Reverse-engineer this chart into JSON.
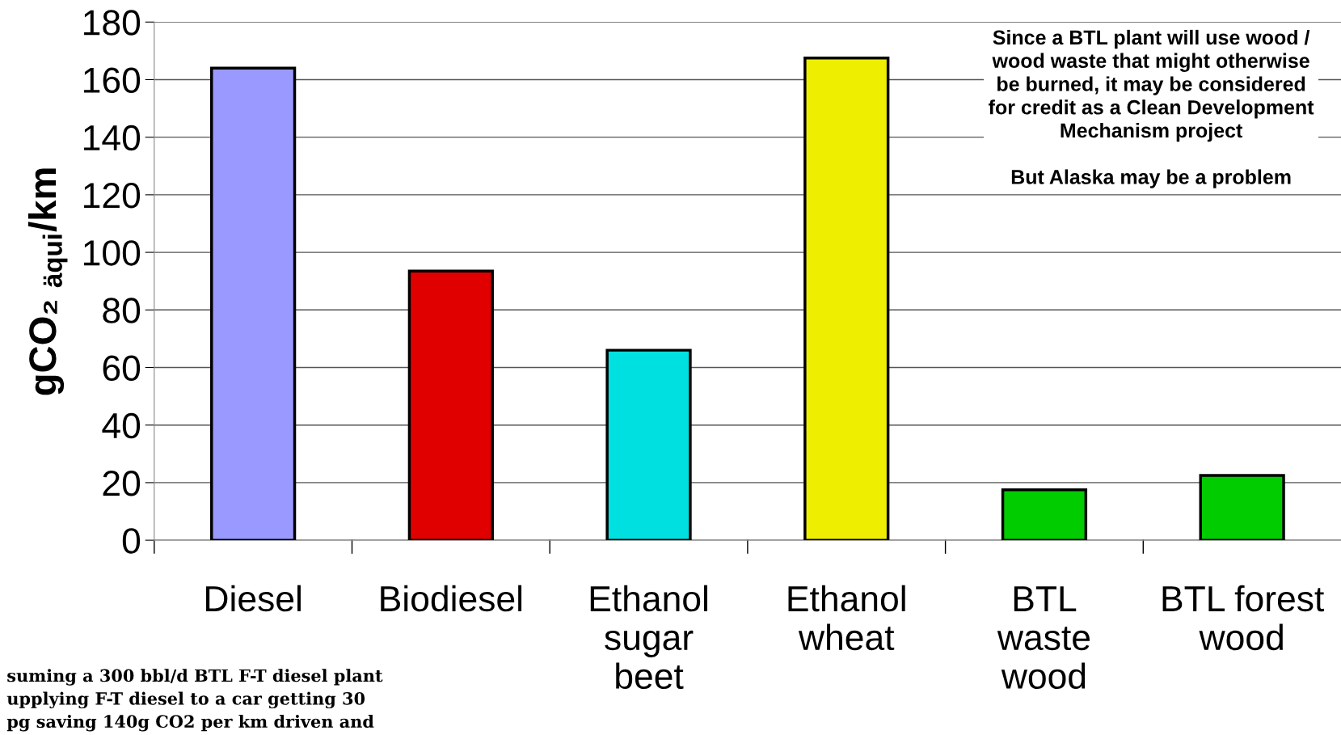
{
  "chart_data": {
    "type": "bar",
    "categories": [
      "Diesel",
      "Biodiesel",
      "Ethanol\nsugar\nbeet",
      "Ethanol\nwheat",
      "BTL\nwaste\nwood",
      "BTL forest\nwood"
    ],
    "values": [
      164,
      93.5,
      66,
      167.5,
      17.5,
      22.5
    ],
    "colors": [
      "#9999ff",
      "#e00000",
      "#00e0e0",
      "#eeee00",
      "#00cc00",
      "#00cc00"
    ],
    "ylabel": "gCO₂ $_{äqui}$/km",
    "ylim": [
      0,
      180
    ],
    "yticks": [
      0,
      20,
      40,
      60,
      80,
      100,
      120,
      140,
      160,
      180
    ],
    "grid": "y",
    "legend": false,
    "annotations": [
      "Since a BTL plant will use wood /\nwood waste that might otherwise\nbe burned, it may be considered\nfor credit as a Clean Development\nMechanism project\n\nBut Alaska may be a problem",
      "suming a 300 bbl/d BTL F-T diesel plant\nupplying F-T diesel to a car getting 30\npg saving 140g CO2 per km driven and"
    ]
  }
}
